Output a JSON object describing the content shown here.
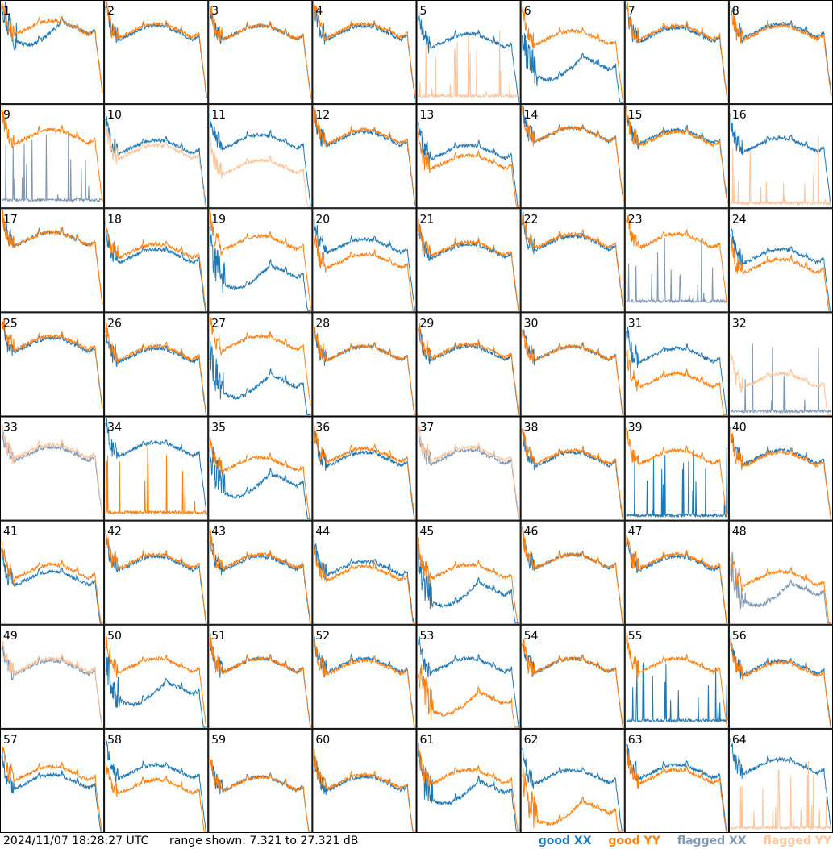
{
  "footer": {
    "timestamp": "2024/11/07 18:28:27 UTC",
    "range": "range shown: 7.321 to 27.321 dB"
  },
  "legend": {
    "good_xx": "good XX",
    "good_yy": "good YY",
    "flagged_xx": "flagged XX",
    "flagged_yy": "flagged YY"
  },
  "colors": {
    "good_xx": "#1f77b4",
    "good_yy": "#ff7f0e",
    "flagged_xx": "#7f97b4",
    "flagged_yy": "#ffc49a"
  },
  "chart_data": {
    "type": "line",
    "ylim": [
      7.321,
      27.321
    ],
    "yunit": "dB",
    "grid": {
      "rows": 8,
      "cols": 8
    },
    "panels": [
      {
        "label": "1",
        "xx_state": "good",
        "yy_state": "good",
        "xx_level": 0.75,
        "yy_level": 0.75,
        "xx_profile": "drop",
        "yy_profile": "normal"
      },
      {
        "label": "2",
        "xx_state": "good",
        "yy_state": "good",
        "xx_level": 0.7,
        "yy_level": 0.72,
        "xx_profile": "normal",
        "yy_profile": "normal"
      },
      {
        "label": "3",
        "xx_state": "good",
        "yy_state": "good",
        "xx_level": 0.7,
        "yy_level": 0.7,
        "xx_profile": "normal",
        "yy_profile": "normal"
      },
      {
        "label": "4",
        "xx_state": "good",
        "yy_state": "good",
        "xx_level": 0.7,
        "yy_level": 0.72,
        "xx_profile": "normal",
        "yy_profile": "normal"
      },
      {
        "label": "5",
        "xx_state": "good",
        "yy_state": "flagged",
        "xx_level": 0.62,
        "yy_level": 0.05,
        "xx_profile": "normal",
        "yy_profile": "spikes"
      },
      {
        "label": "6",
        "xx_state": "good",
        "yy_state": "good",
        "xx_level": 0.4,
        "yy_level": 0.65,
        "xx_profile": "drop",
        "yy_profile": "normal"
      },
      {
        "label": "7",
        "xx_state": "good",
        "yy_state": "good",
        "xx_level": 0.68,
        "yy_level": 0.7,
        "xx_profile": "normal",
        "yy_profile": "normal"
      },
      {
        "label": "8",
        "xx_state": "good",
        "yy_state": "good",
        "xx_level": 0.72,
        "yy_level": 0.7,
        "xx_profile": "normal",
        "yy_profile": "normal"
      },
      {
        "label": "9",
        "xx_state": "flagged",
        "yy_state": "good",
        "xx_level": 0.05,
        "yy_level": 0.7,
        "xx_profile": "spikes",
        "yy_profile": "normal"
      },
      {
        "label": "10",
        "xx_state": "good",
        "yy_state": "flagged",
        "xx_level": 0.6,
        "yy_level": 0.55,
        "xx_profile": "normal",
        "yy_profile": "normal"
      },
      {
        "label": "11",
        "xx_state": "good",
        "yy_state": "flagged",
        "xx_level": 0.65,
        "yy_level": 0.4,
        "xx_profile": "normal",
        "yy_profile": "normal"
      },
      {
        "label": "12",
        "xx_state": "good",
        "yy_state": "good",
        "xx_level": 0.68,
        "yy_level": 0.7,
        "xx_profile": "normal",
        "yy_profile": "normal"
      },
      {
        "label": "13",
        "xx_state": "good",
        "yy_state": "good",
        "xx_level": 0.55,
        "yy_level": 0.45,
        "xx_profile": "normal",
        "yy_profile": "normal"
      },
      {
        "label": "14",
        "xx_state": "good",
        "yy_state": "good",
        "xx_level": 0.72,
        "yy_level": 0.72,
        "xx_profile": "normal",
        "yy_profile": "normal"
      },
      {
        "label": "15",
        "xx_state": "good",
        "yy_state": "good",
        "xx_level": 0.7,
        "yy_level": 0.68,
        "xx_profile": "normal",
        "yy_profile": "normal"
      },
      {
        "label": "16",
        "xx_state": "good",
        "yy_state": "flagged",
        "xx_level": 0.62,
        "yy_level": 0.02,
        "xx_profile": "normal",
        "yy_profile": "spikes"
      },
      {
        "label": "17",
        "xx_state": "good",
        "yy_state": "good",
        "xx_level": 0.72,
        "yy_level": 0.72,
        "xx_profile": "normal",
        "yy_profile": "normal"
      },
      {
        "label": "18",
        "xx_state": "good",
        "yy_state": "good",
        "xx_level": 0.55,
        "yy_level": 0.6,
        "xx_profile": "normal",
        "yy_profile": "normal"
      },
      {
        "label": "19",
        "xx_state": "good",
        "yy_state": "good",
        "xx_level": 0.4,
        "yy_level": 0.68,
        "xx_profile": "drop",
        "yy_profile": "normal"
      },
      {
        "label": "20",
        "xx_state": "good",
        "yy_state": "good",
        "xx_level": 0.65,
        "yy_level": 0.5,
        "xx_profile": "normal",
        "yy_profile": "normal"
      },
      {
        "label": "21",
        "xx_state": "good",
        "yy_state": "good",
        "xx_level": 0.6,
        "yy_level": 0.62,
        "xx_profile": "normal",
        "yy_profile": "normal"
      },
      {
        "label": "22",
        "xx_state": "good",
        "yy_state": "good",
        "xx_level": 0.68,
        "yy_level": 0.7,
        "xx_profile": "normal",
        "yy_profile": "normal"
      },
      {
        "label": "23",
        "xx_state": "flagged",
        "yy_state": "good",
        "xx_level": 0.08,
        "yy_level": 0.7,
        "xx_profile": "spikes",
        "yy_profile": "normal"
      },
      {
        "label": "24",
        "xx_state": "good",
        "yy_state": "good",
        "xx_level": 0.55,
        "yy_level": 0.45,
        "xx_profile": "normal",
        "yy_profile": "normal"
      },
      {
        "label": "25",
        "xx_state": "good",
        "yy_state": "good",
        "xx_level": 0.7,
        "yy_level": 0.72,
        "xx_profile": "normal",
        "yy_profile": "normal"
      },
      {
        "label": "26",
        "xx_state": "good",
        "yy_state": "good",
        "xx_level": 0.6,
        "yy_level": 0.62,
        "xx_profile": "normal",
        "yy_profile": "normal"
      },
      {
        "label": "27",
        "xx_state": "good",
        "yy_state": "good",
        "xx_level": 0.35,
        "yy_level": 0.72,
        "xx_profile": "drop",
        "yy_profile": "normal"
      },
      {
        "label": "28",
        "xx_state": "good",
        "yy_state": "good",
        "xx_level": 0.62,
        "yy_level": 0.62,
        "xx_profile": "normal",
        "yy_profile": "normal"
      },
      {
        "label": "29",
        "xx_state": "good",
        "yy_state": "good",
        "xx_level": 0.62,
        "yy_level": 0.64,
        "xx_profile": "normal",
        "yy_profile": "normal"
      },
      {
        "label": "30",
        "xx_state": "good",
        "yy_state": "good",
        "xx_level": 0.62,
        "yy_level": 0.62,
        "xx_profile": "normal",
        "yy_profile": "normal"
      },
      {
        "label": "31",
        "xx_state": "good",
        "yy_state": "good",
        "xx_level": 0.6,
        "yy_level": 0.35,
        "xx_profile": "normal",
        "yy_profile": "normal"
      },
      {
        "label": "32",
        "xx_state": "flagged",
        "yy_state": "flagged",
        "xx_level": 0.02,
        "yy_level": 0.35,
        "xx_profile": "spikes",
        "yy_profile": "normal"
      },
      {
        "label": "33",
        "xx_state": "flagged",
        "yy_state": "flagged",
        "xx_level": 0.65,
        "yy_level": 0.68,
        "xx_profile": "normal",
        "yy_profile": "normal"
      },
      {
        "label": "34",
        "xx_state": "good",
        "yy_state": "good",
        "xx_level": 0.7,
        "yy_level": 0.05,
        "xx_profile": "normal",
        "yy_profile": "spikes"
      },
      {
        "label": "35",
        "xx_state": "good",
        "yy_state": "good",
        "xx_level": 0.4,
        "yy_level": 0.55,
        "xx_profile": "drop",
        "yy_profile": "normal"
      },
      {
        "label": "36",
        "xx_state": "good",
        "yy_state": "good",
        "xx_level": 0.6,
        "yy_level": 0.64,
        "xx_profile": "normal",
        "yy_profile": "normal"
      },
      {
        "label": "37",
        "xx_state": "flagged",
        "yy_state": "flagged",
        "xx_level": 0.62,
        "yy_level": 0.65,
        "xx_profile": "normal",
        "yy_profile": "normal"
      },
      {
        "label": "38",
        "xx_state": "good",
        "yy_state": "good",
        "xx_level": 0.6,
        "yy_level": 0.62,
        "xx_profile": "normal",
        "yy_profile": "normal"
      },
      {
        "label": "39",
        "xx_state": "good",
        "yy_state": "good",
        "xx_level": 0.02,
        "yy_level": 0.62,
        "xx_profile": "spikes",
        "yy_profile": "normal"
      },
      {
        "label": "40",
        "xx_state": "good",
        "yy_state": "good",
        "xx_level": 0.62,
        "yy_level": 0.6,
        "xx_profile": "normal",
        "yy_profile": "normal"
      },
      {
        "label": "41",
        "xx_state": "good",
        "yy_state": "good",
        "xx_level": 0.45,
        "yy_level": 0.52,
        "xx_profile": "normal",
        "yy_profile": "normal"
      },
      {
        "label": "42",
        "xx_state": "good",
        "yy_state": "good",
        "xx_level": 0.6,
        "yy_level": 0.62,
        "xx_profile": "normal",
        "yy_profile": "normal"
      },
      {
        "label": "43",
        "xx_state": "good",
        "yy_state": "good",
        "xx_level": 0.6,
        "yy_level": 0.62,
        "xx_profile": "normal",
        "yy_profile": "normal"
      },
      {
        "label": "44",
        "xx_state": "good",
        "yy_state": "good",
        "xx_level": 0.55,
        "yy_level": 0.5,
        "xx_profile": "normal",
        "yy_profile": "normal"
      },
      {
        "label": "45",
        "xx_state": "good",
        "yy_state": "good",
        "xx_level": 0.35,
        "yy_level": 0.52,
        "xx_profile": "drop",
        "yy_profile": "normal"
      },
      {
        "label": "46",
        "xx_state": "good",
        "yy_state": "good",
        "xx_level": 0.62,
        "yy_level": 0.62,
        "xx_profile": "normal",
        "yy_profile": "normal"
      },
      {
        "label": "47",
        "xx_state": "good",
        "yy_state": "good",
        "xx_level": 0.6,
        "yy_level": 0.62,
        "xx_profile": "normal",
        "yy_profile": "normal"
      },
      {
        "label": "48",
        "xx_state": "flagged",
        "yy_state": "good",
        "xx_level": 0.35,
        "yy_level": 0.45,
        "xx_profile": "drop",
        "yy_profile": "normal"
      },
      {
        "label": "49",
        "xx_state": "flagged",
        "yy_state": "flagged",
        "xx_level": 0.6,
        "yy_level": 0.62,
        "xx_profile": "normal",
        "yy_profile": "normal"
      },
      {
        "label": "50",
        "xx_state": "good",
        "yy_state": "good",
        "xx_level": 0.4,
        "yy_level": 0.62,
        "xx_profile": "drop",
        "yy_profile": "normal"
      },
      {
        "label": "51",
        "xx_state": "good",
        "yy_state": "good",
        "xx_level": 0.62,
        "yy_level": 0.62,
        "xx_profile": "normal",
        "yy_profile": "normal"
      },
      {
        "label": "52",
        "xx_state": "good",
        "yy_state": "good",
        "xx_level": 0.62,
        "yy_level": 0.6,
        "xx_profile": "normal",
        "yy_profile": "normal"
      },
      {
        "label": "53",
        "xx_state": "good",
        "yy_state": "good",
        "xx_level": 0.62,
        "yy_level": 0.3,
        "xx_profile": "normal",
        "yy_profile": "drop"
      },
      {
        "label": "54",
        "xx_state": "good",
        "yy_state": "good",
        "xx_level": 0.62,
        "yy_level": 0.62,
        "xx_profile": "normal",
        "yy_profile": "normal"
      },
      {
        "label": "55",
        "xx_state": "good",
        "yy_state": "good",
        "xx_level": 0.05,
        "yy_level": 0.62,
        "xx_profile": "spikes",
        "yy_profile": "normal"
      },
      {
        "label": "56",
        "xx_state": "good",
        "yy_state": "good",
        "xx_level": 0.6,
        "yy_level": 0.58,
        "xx_profile": "normal",
        "yy_profile": "normal"
      },
      {
        "label": "57",
        "xx_state": "good",
        "yy_state": "good",
        "xx_level": 0.5,
        "yy_level": 0.58,
        "xx_profile": "normal",
        "yy_profile": "normal"
      },
      {
        "label": "58",
        "xx_state": "good",
        "yy_state": "good",
        "xx_level": 0.6,
        "yy_level": 0.45,
        "xx_profile": "normal",
        "yy_profile": "normal"
      },
      {
        "label": "59",
        "xx_state": "good",
        "yy_state": "good",
        "xx_level": 0.48,
        "yy_level": 0.48,
        "xx_profile": "normal",
        "yy_profile": "normal"
      },
      {
        "label": "60",
        "xx_state": "good",
        "yy_state": "good",
        "xx_level": 0.48,
        "yy_level": 0.5,
        "xx_profile": "normal",
        "yy_profile": "normal"
      },
      {
        "label": "61",
        "xx_state": "good",
        "yy_state": "good",
        "xx_level": 0.45,
        "yy_level": 0.55,
        "xx_profile": "drop",
        "yy_profile": "normal"
      },
      {
        "label": "62",
        "xx_state": "good",
        "yy_state": "good",
        "xx_level": 0.55,
        "yy_level": 0.25,
        "xx_profile": "normal",
        "yy_profile": "drop"
      },
      {
        "label": "63",
        "xx_state": "good",
        "yy_state": "good",
        "xx_level": 0.6,
        "yy_level": 0.55,
        "xx_profile": "normal",
        "yy_profile": "normal"
      },
      {
        "label": "64",
        "xx_state": "good",
        "yy_state": "flagged",
        "xx_level": 0.65,
        "yy_level": 0.02,
        "xx_profile": "normal",
        "yy_profile": "spikes"
      }
    ]
  }
}
